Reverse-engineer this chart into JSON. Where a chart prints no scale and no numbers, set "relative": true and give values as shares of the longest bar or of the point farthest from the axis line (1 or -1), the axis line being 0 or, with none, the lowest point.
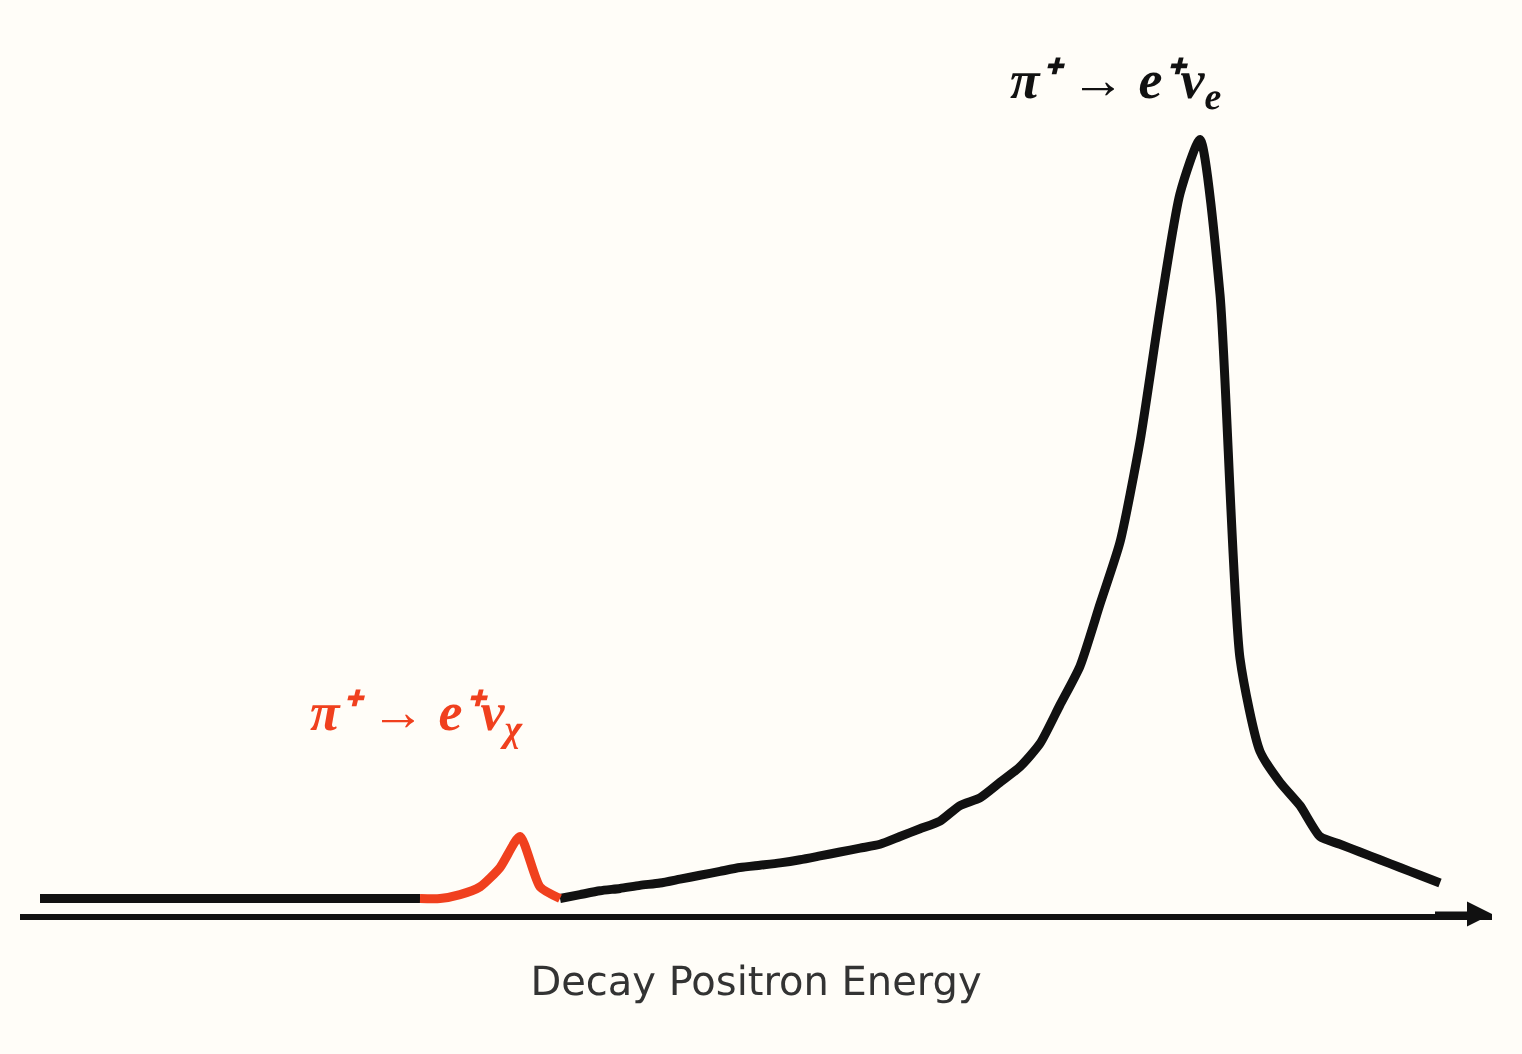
{
  "chart_data": {
    "type": "line",
    "relative": true,
    "xlabel": "Decay Positron Energy",
    "annotations": [
      "π⁺ → e⁺ν$_{e}$",
      "π⁺ → e⁺ν$_{χ}$"
    ],
    "categories": [
      null,
      null,
      null,
      null,
      null,
      null,
      null,
      null,
      null,
      null,
      null,
      null,
      null,
      null,
      null,
      null,
      null,
      null,
      null,
      null,
      null,
      null,
      null,
      null,
      null,
      null,
      null,
      null,
      null,
      null,
      null,
      null,
      null,
      null,
      null,
      null,
      null,
      null,
      null,
      null,
      null,
      null,
      null,
      null,
      null,
      null,
      null,
      null,
      null,
      null,
      null,
      null,
      null,
      null,
      null,
      null,
      null,
      null,
      null,
      null,
      null,
      null,
      null,
      null,
      null,
      null,
      null,
      null,
      null,
      null,
      null
    ],
    "series": [
      {
        "color": "#111111",
        "values": [
          0.02,
          0.02,
          0.02,
          0.02,
          0.02,
          0.02,
          0.02,
          0.02,
          0.02,
          0.02,
          0.02,
          0.02,
          0.02,
          0.02,
          0.02,
          0.02,
          0.02,
          0.02,
          0.02,
          0.02,
          null,
          null,
          null,
          null,
          null,
          null,
          0.02,
          0.025,
          0.03,
          0.033,
          0.037,
          0.04,
          0.045,
          0.05,
          0.055,
          0.06,
          0.063,
          0.066,
          0.07,
          0.075,
          0.08,
          0.085,
          0.09,
          0.1,
          0.11,
          0.12,
          0.14,
          0.15,
          0.17,
          0.19,
          0.22,
          0.27,
          0.32,
          0.4,
          0.48,
          0.61,
          0.78,
          0.93,
          1.0,
          0.8,
          0.33,
          0.21,
          0.17,
          0.14,
          0.1,
          0.09,
          0.08,
          0.07,
          0.06,
          0.05,
          0.04
        ]
      },
      {
        "color": "#f0401e",
        "values": [
          null,
          null,
          null,
          null,
          null,
          null,
          null,
          null,
          null,
          null,
          null,
          null,
          null,
          null,
          null,
          null,
          null,
          null,
          null,
          0.02,
          0.02,
          0.025,
          0.035,
          0.06,
          0.1,
          0.035,
          0.02,
          null,
          null,
          null,
          null,
          null,
          null,
          null,
          null,
          null,
          null,
          null,
          null,
          null,
          null,
          null,
          null,
          null,
          null,
          null,
          null,
          null,
          null,
          null,
          null,
          null,
          null,
          null,
          null,
          null,
          null,
          null,
          null,
          null,
          null,
          null,
          null,
          null,
          null,
          null,
          null,
          null,
          null,
          null,
          null
        ]
      }
    ]
  }
}
